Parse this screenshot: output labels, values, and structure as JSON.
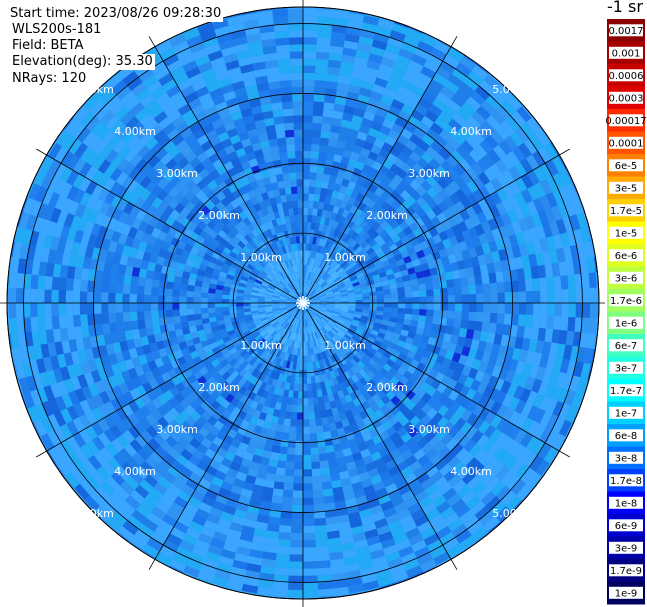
{
  "info": {
    "start_time": "Start time: 2023/08/26 09:28:30",
    "instrument": "WLS200s-181",
    "field": "Field: BETA",
    "elevation": "Elevation(deg): 35.30",
    "nrays": "NRays: 120"
  },
  "colorbar": {
    "unit": "-1 sr",
    "labels": [
      "0.0017",
      "0.001",
      "0.0006",
      "0.0003",
      "0.00017",
      "0.0001",
      "6e-5",
      "3e-5",
      "1.7e-5",
      "1e-5",
      "6e-6",
      "3e-6",
      "1.7e-6",
      "1e-6",
      "6e-7",
      "3e-7",
      "1.7e-7",
      "1e-7",
      "6e-8",
      "3e-8",
      "1.7e-8",
      "1e-8",
      "6e-9",
      "3e-9",
      "1.7e-9",
      "1e-9"
    ],
    "colors": [
      "#8b0000",
      "#a80000",
      "#c80000",
      "#e00000",
      "#ff2a00",
      "#ff5500",
      "#ff8000",
      "#ffaa00",
      "#ffd000",
      "#ffff00",
      "#e0ff20",
      "#c0ff40",
      "#a0ff60",
      "#80ff80",
      "#40ffbf",
      "#20ffe0",
      "#00ffff",
      "#00d0ff",
      "#00a0ff",
      "#0070ff",
      "#0040ff",
      "#0000ff",
      "#0000d0",
      "#0000a8",
      "#000080",
      "#000060"
    ]
  },
  "chart_data": {
    "type": "heatmap",
    "projection": "polar-ppi",
    "ring_labels": [
      "1.00km",
      "2.00km",
      "3.00km",
      "4.00km",
      "5.00km"
    ],
    "ring_ranges_km": [
      1,
      2,
      3,
      4,
      5
    ],
    "max_range_km": 5.0,
    "n_rays": 120,
    "grid": true,
    "dominant_value": "1e-7 to 6e-8"
  }
}
